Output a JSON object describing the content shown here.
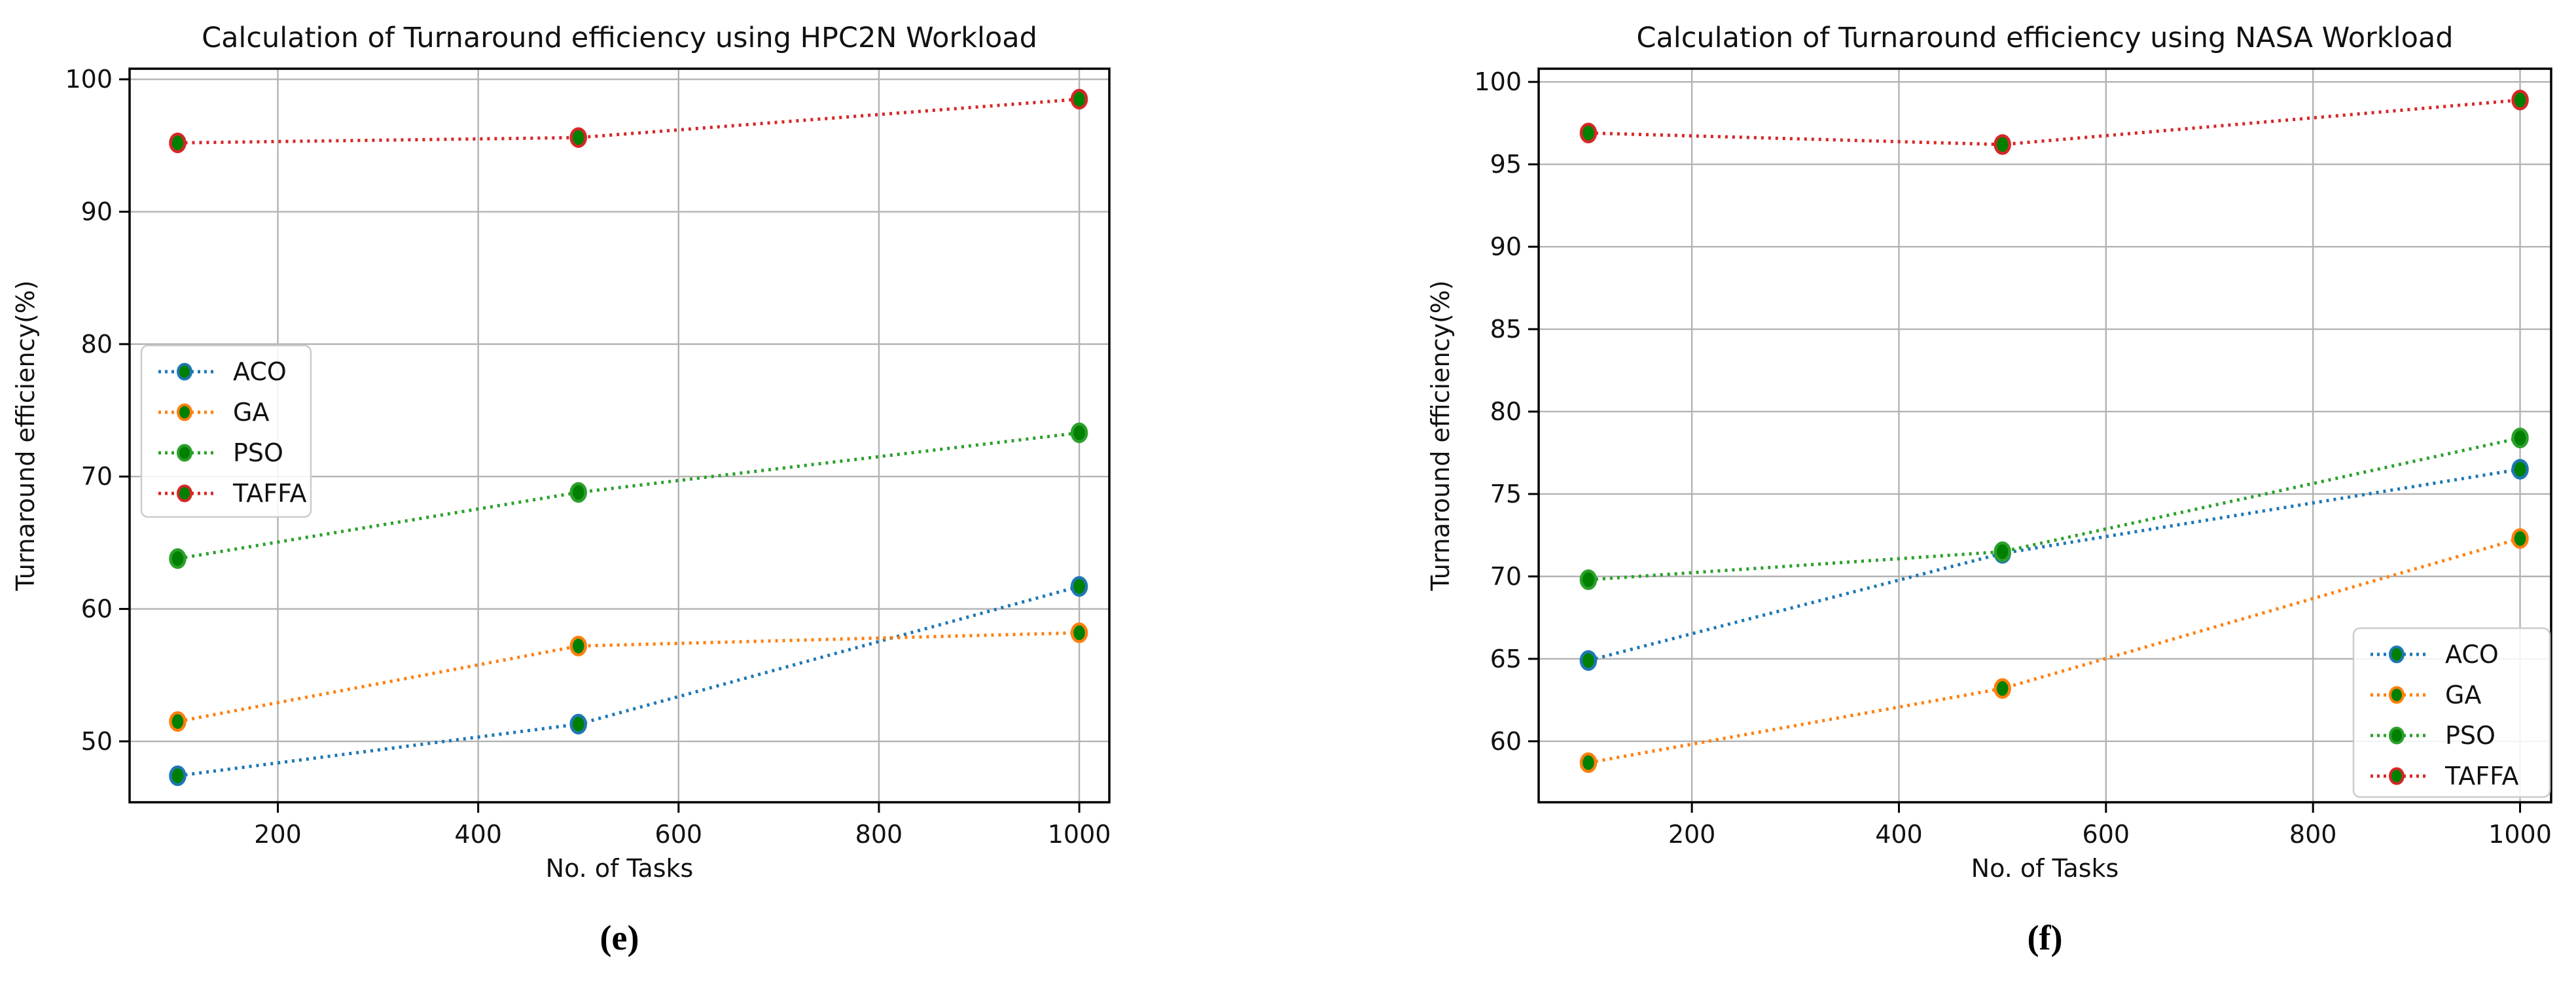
{
  "page": {
    "background": "#ffffff",
    "grid_color": "#b3b3b3",
    "spine_color": "#000000"
  },
  "figures": [
    {
      "caption": "(e)"
    },
    {
      "caption": "(f)"
    }
  ],
  "chart_data": [
    {
      "type": "line",
      "title": "Calculation of Turnaround efficiency using HPC2N Workload",
      "xlabel": "No. of Tasks",
      "ylabel": "Turnaround efficiency(%)",
      "x": [
        100,
        500,
        1000
      ],
      "xticks": [
        200,
        400,
        600,
        800,
        1000
      ],
      "yticks": [
        50,
        60,
        70,
        80,
        90,
        100
      ],
      "xlim": [
        52,
        1030
      ],
      "ylim": [
        45.4,
        100.8
      ],
      "grid": true,
      "line_style": "dotted",
      "legend_position": "center-left",
      "marker_face_color": "#008000",
      "series": [
        {
          "name": "ACO",
          "color": "#1f77b4",
          "values": [
            47.4,
            51.3,
            61.7
          ]
        },
        {
          "name": "GA",
          "color": "#ff7f0e",
          "values": [
            51.5,
            57.2,
            58.2
          ]
        },
        {
          "name": "PSO",
          "color": "#2ca02c",
          "values": [
            63.8,
            68.8,
            73.3
          ]
        },
        {
          "name": "TAFFA",
          "color": "#d62728",
          "values": [
            95.2,
            95.6,
            98.5
          ]
        }
      ]
    },
    {
      "type": "line",
      "title": "Calculation of Turnaround efficiency using NASA Workload",
      "xlabel": "No. of Tasks",
      "ylabel": "Turnaround efficiency(%)",
      "x": [
        100,
        500,
        1000
      ],
      "xticks": [
        200,
        400,
        600,
        800,
        1000
      ],
      "yticks": [
        60,
        65,
        70,
        75,
        80,
        85,
        90,
        95,
        100
      ],
      "xlim": [
        52,
        1030
      ],
      "ylim": [
        56.3,
        100.8
      ],
      "grid": true,
      "line_style": "dotted",
      "legend_position": "lower-right",
      "marker_face_color": "#008000",
      "series": [
        {
          "name": "ACO",
          "color": "#1f77b4",
          "values": [
            64.9,
            71.4,
            76.5
          ]
        },
        {
          "name": "GA",
          "color": "#ff7f0e",
          "values": [
            58.7,
            63.2,
            72.3
          ]
        },
        {
          "name": "PSO",
          "color": "#2ca02c",
          "values": [
            69.8,
            71.5,
            78.4
          ]
        },
        {
          "name": "TAFFA",
          "color": "#d62728",
          "values": [
            96.9,
            96.2,
            98.9
          ]
        }
      ]
    }
  ]
}
